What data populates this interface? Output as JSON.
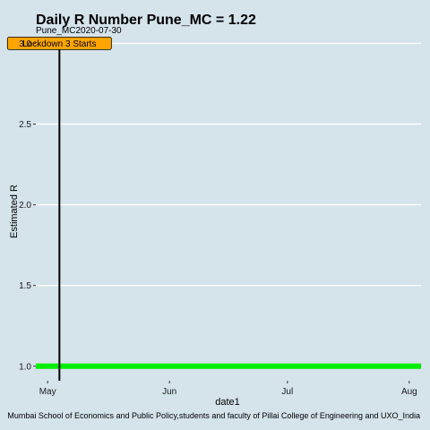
{
  "chart_data": {
    "type": "line",
    "title": "Daily R Number Pune_MC = 1.22",
    "subtitle": "Pune_MC2020-07-30",
    "xlabel": "date1",
    "ylabel": "Estimated R",
    "caption": "Mumbai School of Economics and Public Policy,students and faculty of Pillai College of Engineering and UXO_India",
    "xlim": [
      "2020-04-28",
      "2020-08-04"
    ],
    "ylim": [
      0.91,
      3.03
    ],
    "x_ticks": [
      {
        "date": "2020-05-01",
        "label": "May"
      },
      {
        "date": "2020-06-01",
        "label": "Jun"
      },
      {
        "date": "2020-07-01",
        "label": "Jul"
      },
      {
        "date": "2020-08-01",
        "label": "Aug"
      }
    ],
    "y_ticks": [
      {
        "value": 1.0,
        "label": "1.0"
      },
      {
        "value": 1.5,
        "label": "1.5"
      },
      {
        "value": 2.0,
        "label": "2.0"
      },
      {
        "value": 2.5,
        "label": "2.5"
      },
      {
        "value": 3.0,
        "label": "3.0"
      }
    ],
    "grid": true,
    "reference_line": {
      "y": 1.0,
      "color": "#00ee00"
    },
    "events": [
      {
        "date": "2020-05-04",
        "label": "Lockdown 3 Starts",
        "label_y": 3.0,
        "fill": "#ffa500"
      }
    ],
    "colors": {
      "background": "#d5e3eb",
      "grid": "#ffffff",
      "event_line": "#000000"
    }
  }
}
